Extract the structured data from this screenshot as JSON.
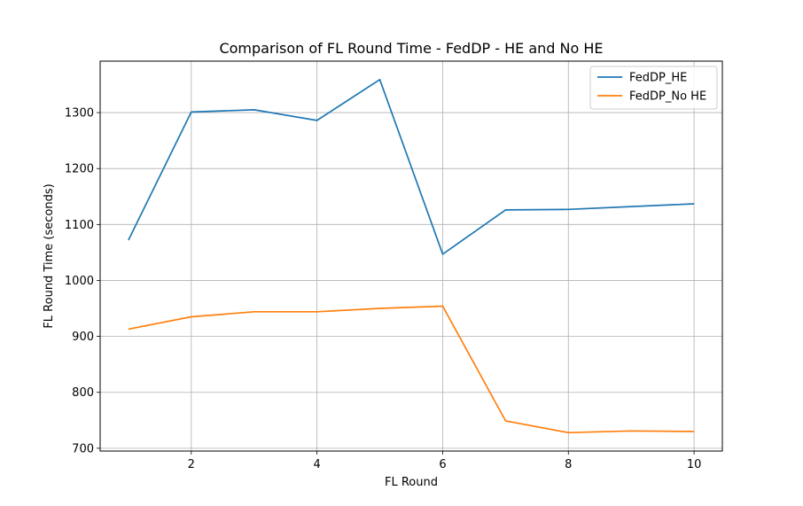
{
  "chart_data": {
    "type": "line",
    "title": "Comparison of FL Round Time - FedDP - HE and No HE",
    "xlabel": "FL Round",
    "ylabel": "FL Round Time (seconds)",
    "xlim": [
      0.55,
      10.45
    ],
    "ylim": [
      695,
      1392
    ],
    "x": [
      1,
      2,
      3,
      4,
      5,
      6,
      7,
      8,
      9,
      10
    ],
    "xticks": [
      2,
      4,
      6,
      8,
      10
    ],
    "yticks": [
      700,
      800,
      900,
      1000,
      1100,
      1200,
      1300
    ],
    "grid": true,
    "legend_position": "top-right",
    "series": [
      {
        "name": "FedDP_HE",
        "color": "#1f77b4",
        "values": [
          1072,
          1301,
          1305,
          1286,
          1359,
          1047,
          1126,
          1127,
          1132,
          1137
        ]
      },
      {
        "name": "FedDP_No HE",
        "color": "#ff7f0e",
        "values": [
          913,
          935,
          944,
          944,
          950,
          954,
          749,
          728,
          731,
          730
        ]
      }
    ]
  }
}
